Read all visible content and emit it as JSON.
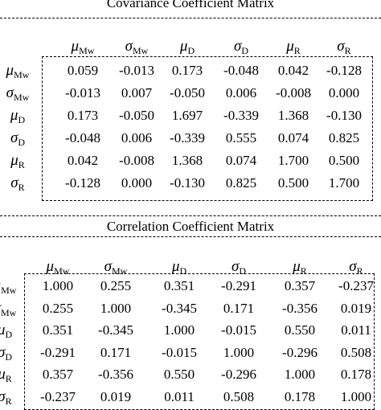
{
  "covariance": {
    "title": "Covariance Coefficient Matrix",
    "headers": [
      {
        "sym": "μ",
        "sub": "Mw"
      },
      {
        "sym": "σ",
        "sub": "Mw"
      },
      {
        "sym": "μ",
        "sub": "D"
      },
      {
        "sym": "σ",
        "sub": "D"
      },
      {
        "sym": "μ",
        "sub": "R"
      },
      {
        "sym": "σ",
        "sub": "R"
      }
    ],
    "rows": [
      {
        "sym": "μ",
        "sub": "Mw",
        "values": [
          "0.059",
          "-0.013",
          "0.173",
          "-0.048",
          "0.042",
          "-0.128"
        ]
      },
      {
        "sym": "σ",
        "sub": "Mw",
        "values": [
          "-0.013",
          "0.007",
          "-0.050",
          "0.006",
          "-0.008",
          "0.000"
        ]
      },
      {
        "sym": "μ",
        "sub": "D",
        "values": [
          "0.173",
          "-0.050",
          "1.697",
          "-0.339",
          "1.368",
          "-0.130"
        ]
      },
      {
        "sym": "σ",
        "sub": "D",
        "values": [
          "-0.048",
          "0.006",
          "-0.339",
          "0.555",
          "0.074",
          "0.825"
        ]
      },
      {
        "sym": "μ",
        "sub": "R",
        "values": [
          "0.042",
          "-0.008",
          "1.368",
          "0.074",
          "1.700",
          "0.500"
        ]
      },
      {
        "sym": "σ",
        "sub": "R",
        "values": [
          "-0.128",
          "0.000",
          "-0.130",
          "0.825",
          "0.500",
          "1.700"
        ]
      }
    ]
  },
  "correlation": {
    "title": "Correlation Coefficient Matrix",
    "headers": [
      {
        "sym": "μ",
        "sub": "Mw"
      },
      {
        "sym": "σ",
        "sub": "Mw"
      },
      {
        "sym": "μ",
        "sub": "D"
      },
      {
        "sym": "σ",
        "sub": "D"
      },
      {
        "sym": "μ",
        "sub": "R"
      },
      {
        "sym": "σ",
        "sub": "R"
      }
    ],
    "rows": [
      {
        "sym": "μ",
        "sub": "Mw",
        "values": [
          "1.000",
          "0.255",
          "0.351",
          "-0.291",
          "0.357",
          "-0.237"
        ]
      },
      {
        "sym": "σ",
        "sub": "Mw",
        "values": [
          "0.255",
          "1.000",
          "-0.345",
          "0.171",
          "-0.356",
          "0.019"
        ]
      },
      {
        "sym": "μ",
        "sub": "D",
        "values": [
          "0.351",
          "-0.345",
          "1.000",
          "-0.015",
          "0.550",
          "0.011"
        ]
      },
      {
        "sym": "σ",
        "sub": "D",
        "values": [
          "-0.291",
          "0.171",
          "-0.015",
          "1.000",
          "-0.296",
          "0.508"
        ]
      },
      {
        "sym": "μ",
        "sub": "R",
        "values": [
          "0.357",
          "-0.356",
          "0.550",
          "-0.296",
          "1.000",
          "0.178"
        ]
      },
      {
        "sym": "σ",
        "sub": "R",
        "values": [
          "-0.237",
          "0.019",
          "0.011",
          "0.508",
          "0.178",
          "1.000"
        ]
      }
    ]
  }
}
